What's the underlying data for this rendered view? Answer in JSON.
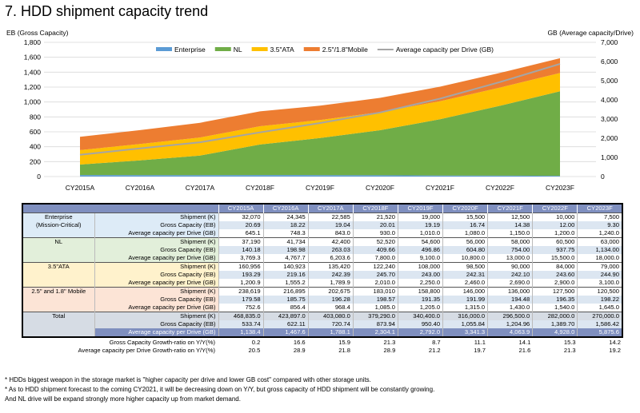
{
  "title": "7. HDD shipment capacity trend",
  "chart_data": {
    "type": "area",
    "stacked": true,
    "left_axis_label": "EB (Gross Capacity)",
    "right_axis_label": "GB (Average capacity/Drive)",
    "categories": [
      "CY2015A",
      "CY2016A",
      "CY2017A",
      "CY2018F",
      "CY2019F",
      "CY2020F",
      "CY2021F",
      "CY2022F",
      "CY2023F"
    ],
    "y_left": {
      "min": 0,
      "max": 1800,
      "ticks": [
        "0",
        "200",
        "400",
        "600",
        "800",
        "1,000",
        "1,200",
        "1,400",
        "1,600",
        "1,800"
      ]
    },
    "y_right": {
      "min": 0,
      "max": 7000,
      "ticks": [
        "0",
        "1,000",
        "2,000",
        "3,000",
        "4,000",
        "5,000",
        "6,000",
        "7,000"
      ]
    },
    "series": [
      {
        "name": "Enterprise",
        "color": "#5b9bd5",
        "values": [
          20.69,
          18.22,
          19.04,
          20.01,
          19.19,
          16.74,
          14.38,
          12.0,
          9.3
        ]
      },
      {
        "name": "NL",
        "color": "#70ad47",
        "values": [
          140.18,
          198.98,
          263.03,
          409.66,
          496.86,
          604.8,
          754.0,
          937.75,
          1134.0
        ]
      },
      {
        "name": "3.5\"ATA",
        "color": "#ffc000",
        "values": [
          193.29,
          219.16,
          242.39,
          245.7,
          243.0,
          242.31,
          242.1,
          243.6,
          244.9
        ]
      },
      {
        "name": "2.5\"/1.8\"Mobile",
        "color": "#ed7d31",
        "values": [
          179.58,
          185.75,
          196.28,
          198.57,
          191.35,
          191.99,
          194.48,
          196.35,
          198.22
        ]
      }
    ],
    "line": {
      "name": "Average capacity per Drive (GB)",
      "color": "#a5a5a5",
      "axis": "right",
      "values": [
        1138.4,
        1467.6,
        1788.1,
        2304.1,
        2792.0,
        3341.3,
        4063.9,
        4928.0,
        5875.6
      ]
    },
    "legend_position": "top"
  },
  "table": {
    "headers": [
      "CY2015A",
      "CY2016A",
      "CY2017A",
      "CY2018F",
      "CY2019F",
      "CY2020F",
      "CY2021F",
      "CY2022F",
      "CY2023F"
    ],
    "groups": [
      {
        "label": "Enterprise\n(Mission-Critical)",
        "bg": "ent",
        "rows": [
          {
            "metric": "Shipment (K)",
            "values": [
              "32,070",
              "24,345",
              "22,585",
              "21,520",
              "19,000",
              "15,500",
              "12,500",
              "10,000",
              "7,500"
            ]
          },
          {
            "metric": "Gross Capacity (EB)",
            "values": [
              "20.69",
              "18.22",
              "19.04",
              "20.01",
              "19.19",
              "16.74",
              "14.38",
              "12.00",
              "9.30"
            ],
            "band": true
          },
          {
            "metric": "Average capacity per Drive (GB)",
            "values": [
              "645.1",
              "748.3",
              "843.0",
              "930.0",
              "1,010.0",
              "1,080.0",
              "1,150.0",
              "1,200.0",
              "1,240.0"
            ]
          }
        ]
      },
      {
        "label": "NL",
        "bg": "nl",
        "rows": [
          {
            "metric": "Shipment (K)",
            "values": [
              "37,190",
              "41,734",
              "42,400",
              "52,520",
              "54,600",
              "56,000",
              "58,000",
              "60,500",
              "63,000"
            ]
          },
          {
            "metric": "Gross  Capacity (EB)",
            "values": [
              "140.18",
              "198.98",
              "263.03",
              "409.66",
              "496.86",
              "604.80",
              "754.00",
              "937.75",
              "1,134.00"
            ],
            "band": true
          },
          {
            "metric": "Average capacity per Drive (GB)",
            "values": [
              "3,769.3",
              "4,767.7",
              "6,203.6",
              "7,800.0",
              "9,100.0",
              "10,800.0",
              "13,000.0",
              "15,500.0",
              "18,000.0"
            ]
          }
        ]
      },
      {
        "label": "3.5\"ATA",
        "bg": "ata",
        "rows": [
          {
            "metric": "Shipment (K)",
            "values": [
              "160,956",
              "140,923",
              "135,420",
              "122,240",
              "108,000",
              "98,500",
              "90,000",
              "84,000",
              "79,000"
            ]
          },
          {
            "metric": "Gross Capacity (EB)",
            "values": [
              "193.29",
              "219.16",
              "242.39",
              "245.70",
              "243.00",
              "242.31",
              "242.10",
              "243.60",
              "244.90"
            ],
            "band": true
          },
          {
            "metric": "Average capacity per Drive (GB)",
            "values": [
              "1,200.9",
              "1,555.2",
              "1,789.9",
              "2,010.0",
              "2,250.0",
              "2,460.0",
              "2,690.0",
              "2,900.0",
              "3,100.0"
            ]
          }
        ]
      },
      {
        "label": "2.5\" and 1.8\" Mobile",
        "bg": "mob",
        "rows": [
          {
            "metric": "Shipment (K)",
            "values": [
              "238,619",
              "216,895",
              "202,675",
              "183,010",
              "158,800",
              "146,000",
              "136,000",
              "127,500",
              "120,500"
            ]
          },
          {
            "metric": "Gross  Capacity (EB)",
            "values": [
              "179.58",
              "185.75",
              "196.28",
              "198.57",
              "191.35",
              "191.99",
              "194.48",
              "196.35",
              "198.22"
            ],
            "band": true
          },
          {
            "metric": "Average capacity per Drive (GB)",
            "values": [
              "752.6",
              "856.4",
              "968.4",
              "1,085.0",
              "1,205.0",
              "1,315.0",
              "1,430.0",
              "1,540.0",
              "1,645.0"
            ]
          }
        ]
      },
      {
        "label": "Total",
        "bg": "tot",
        "rows": [
          {
            "metric": "Shipment (K)",
            "values": [
              "468,835.0",
              "423,897.0",
              "403,080.0",
              "379,290.0",
              "340,400.0",
              "316,000.0",
              "296,500.0",
              "282,000.0",
              "270,000.0"
            ]
          },
          {
            "metric": "Gross Capacity (EB)",
            "values": [
              "533.74",
              "622.11",
              "720.74",
              "873.94",
              "950.40",
              "1,055.84",
              "1,204.96",
              "1,389.70",
              "1,586.42"
            ],
            "band": true
          },
          {
            "metric": "Average capacity per Drive (GB)",
            "values": [
              "1,138.4",
              "1,467.6",
              "1,788.1",
              "2,304.1",
              "2,792.0",
              "3,341.3",
              "4,063.9",
              "4,928.0",
              "5,875.6"
            ],
            "total_avg": true
          }
        ]
      }
    ],
    "growth": [
      {
        "label": "Gross Capacity Growth-ratio on Y/Y(%)",
        "values": [
          "0.2",
          "16.6",
          "15.9",
          "21.3",
          "8.7",
          "11.1",
          "14.1",
          "15.3",
          "14.2"
        ]
      },
      {
        "label": "Average capacity per Drive Growth-ratio on Y/Y(%)",
        "values": [
          "20.5",
          "28.9",
          "21.8",
          "28.9",
          "21.2",
          "19.7",
          "21.6",
          "21.3",
          "19.2"
        ]
      }
    ]
  },
  "notes": [
    "* HDDs  biggest weapon in the storage market is \"higher capacity per drive and lower GB cost\"  compared with other storage units.",
    "* As to HDD shipment forecast to the coming CY2021,  it will be decreasing down on Y/Y,  but gross capacity of HDD shipment will be constantly growing.",
    "And NL drive will be expand strongly more higher capacity up from market demand."
  ]
}
